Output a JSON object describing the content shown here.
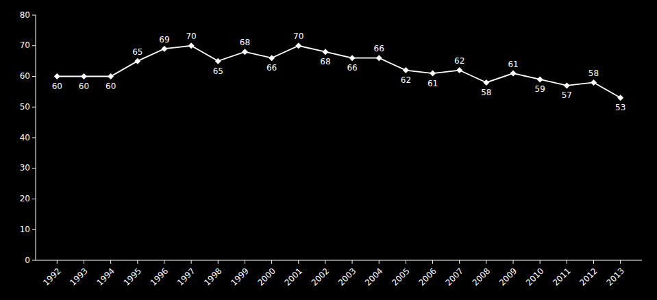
{
  "chart_data": {
    "type": "line",
    "x": [
      1992,
      1993,
      1994,
      1995,
      1996,
      1997,
      1998,
      1999,
      2000,
      2001,
      2002,
      2003,
      2004,
      2005,
      2006,
      2007,
      2008,
      2009,
      2010,
      2011,
      2012,
      2013
    ],
    "values": [
      60,
      60,
      60,
      65,
      69,
      70,
      65,
      68,
      66,
      70,
      68,
      66,
      66,
      62,
      61,
      62,
      58,
      61,
      59,
      57,
      58,
      53
    ],
    "color": "#ffffff",
    "marker": "diamond",
    "xlim": [
      1991.2,
      2013.8
    ],
    "xticks": [
      1992,
      1993,
      1994,
      1995,
      1996,
      1997,
      1998,
      1999,
      2000,
      2001,
      2002,
      2003,
      2004,
      2005,
      2006,
      2007,
      2008,
      2009,
      2010,
      2011,
      2012,
      2013
    ],
    "ylim": [
      0,
      80
    ],
    "yticks": [
      0,
      10,
      20,
      30,
      40,
      50,
      60,
      70,
      80
    ],
    "grid": false,
    "data_labels": true
  }
}
